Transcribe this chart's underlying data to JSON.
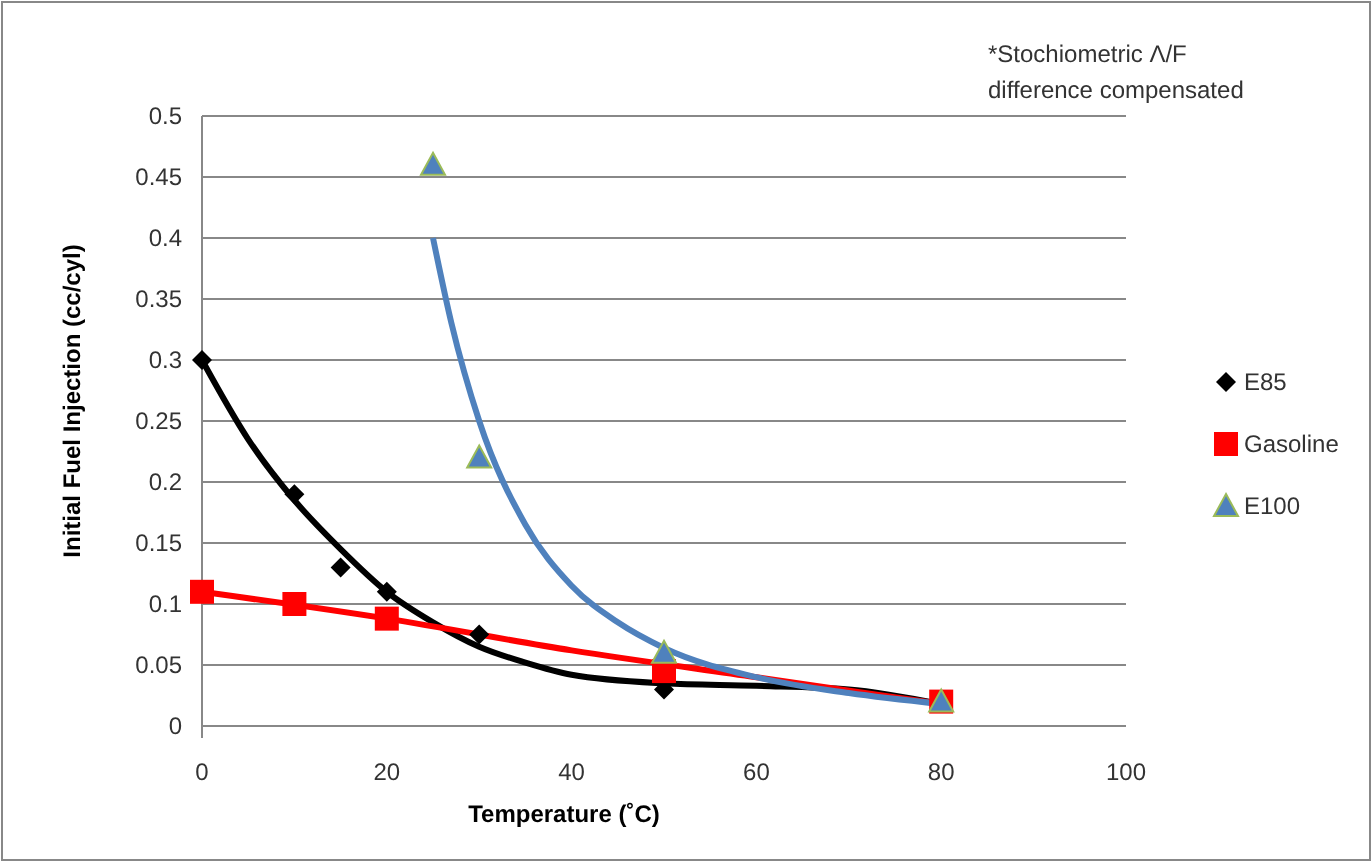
{
  "chart_data": {
    "type": "scatter",
    "xlabel": "Temperature (˚C)",
    "ylabel": "Initial Fuel Injection (cc/cyl)",
    "annotations": [
      "*Stochiometric Λ/F difference compensated"
    ],
    "xlim": [
      0,
      100
    ],
    "xticks": [
      0,
      20,
      40,
      60,
      80,
      100
    ],
    "ylim": [
      0,
      0.5
    ],
    "yticks": [
      0,
      0.05,
      0.1,
      0.15,
      0.2,
      0.25,
      0.3,
      0.35,
      0.4,
      0.45,
      0.5
    ],
    "grid": "y",
    "legend": "right",
    "series": [
      {
        "name": "E85",
        "color": "#000000",
        "marker": "diamond",
        "x": [
          0,
          10,
          15,
          20,
          30,
          50
        ],
        "values": [
          0.3,
          0.19,
          0.13,
          0.11,
          0.075,
          0.03
        ]
      },
      {
        "name": "Gasoline",
        "color": "#ff0000",
        "marker": "square",
        "x": [
          0,
          10,
          20,
          50,
          80
        ],
        "values": [
          0.11,
          0.1,
          0.088,
          0.045,
          0.02
        ]
      },
      {
        "name": "E100",
        "color": "#4f81bd",
        "marker": "triangle",
        "x": [
          25,
          30,
          50,
          80
        ],
        "values": [
          0.46,
          0.22,
          0.06,
          0.02
        ]
      },
      {
        "type": "line",
        "color": "#000000",
        "x": [
          0,
          5,
          10,
          15,
          20,
          25,
          30,
          35,
          40,
          50,
          60,
          70,
          80
        ],
        "values": [
          0.3,
          0.235,
          0.185,
          0.145,
          0.11,
          0.085,
          0.065,
          0.052,
          0.042,
          0.035,
          0.033,
          0.03,
          0.018
        ]
      },
      {
        "type": "line",
        "color": "#ff0000",
        "x": [
          0,
          20,
          40,
          60,
          80
        ],
        "values": [
          0.11,
          0.088,
          0.062,
          0.04,
          0.018
        ]
      },
      {
        "type": "line",
        "color": "#4f81bd",
        "x": [
          25,
          27,
          30,
          35,
          40,
          45,
          50,
          60,
          70,
          80
        ],
        "values": [
          0.4,
          0.33,
          0.25,
          0.165,
          0.115,
          0.085,
          0.064,
          0.04,
          0.027,
          0.018
        ]
      }
    ]
  }
}
